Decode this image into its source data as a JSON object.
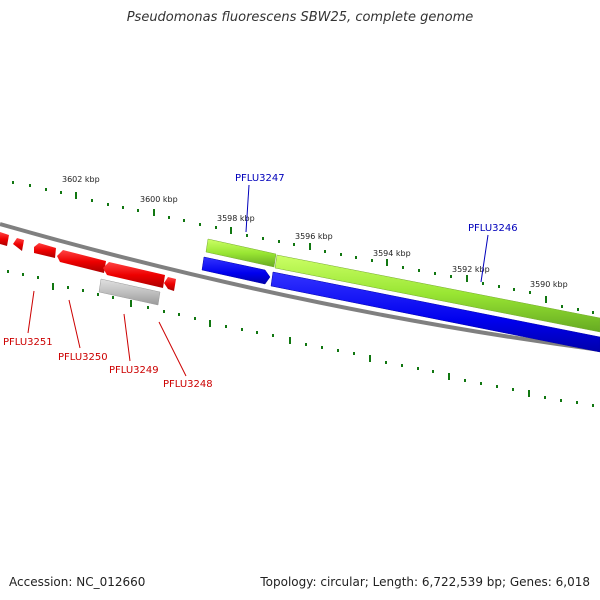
{
  "title": "Pseudomonas fluorescens SBW25, complete genome",
  "accession": "Accession: NC_012660",
  "genome_info": "Topology: circular; Length: 6,722,539 bp; Genes: 6,018",
  "scale_labels": [
    "3602 kbp",
    "3600 kbp",
    "3598 kbp",
    "3596 kbp",
    "3594 kbp",
    "3592 kbp",
    "3590 kbp"
  ],
  "gene_labels": {
    "PFLU3247": "PFLU3247",
    "PFLU3246": "PFLU3246",
    "PFLU3251": "PFLU3251",
    "PFLU3250": "PFLU3250",
    "PFLU3249": "PFLU3249",
    "PFLU3248": "PFLU3248"
  },
  "colors": {
    "reverse_strand_gene": "#ee0000",
    "pseudo_gene": "#c0c0c0",
    "forward_strand_gene": "#0000ee",
    "rna_gene": "#99e633",
    "backbone": "#808080",
    "ticks": "#117711"
  }
}
